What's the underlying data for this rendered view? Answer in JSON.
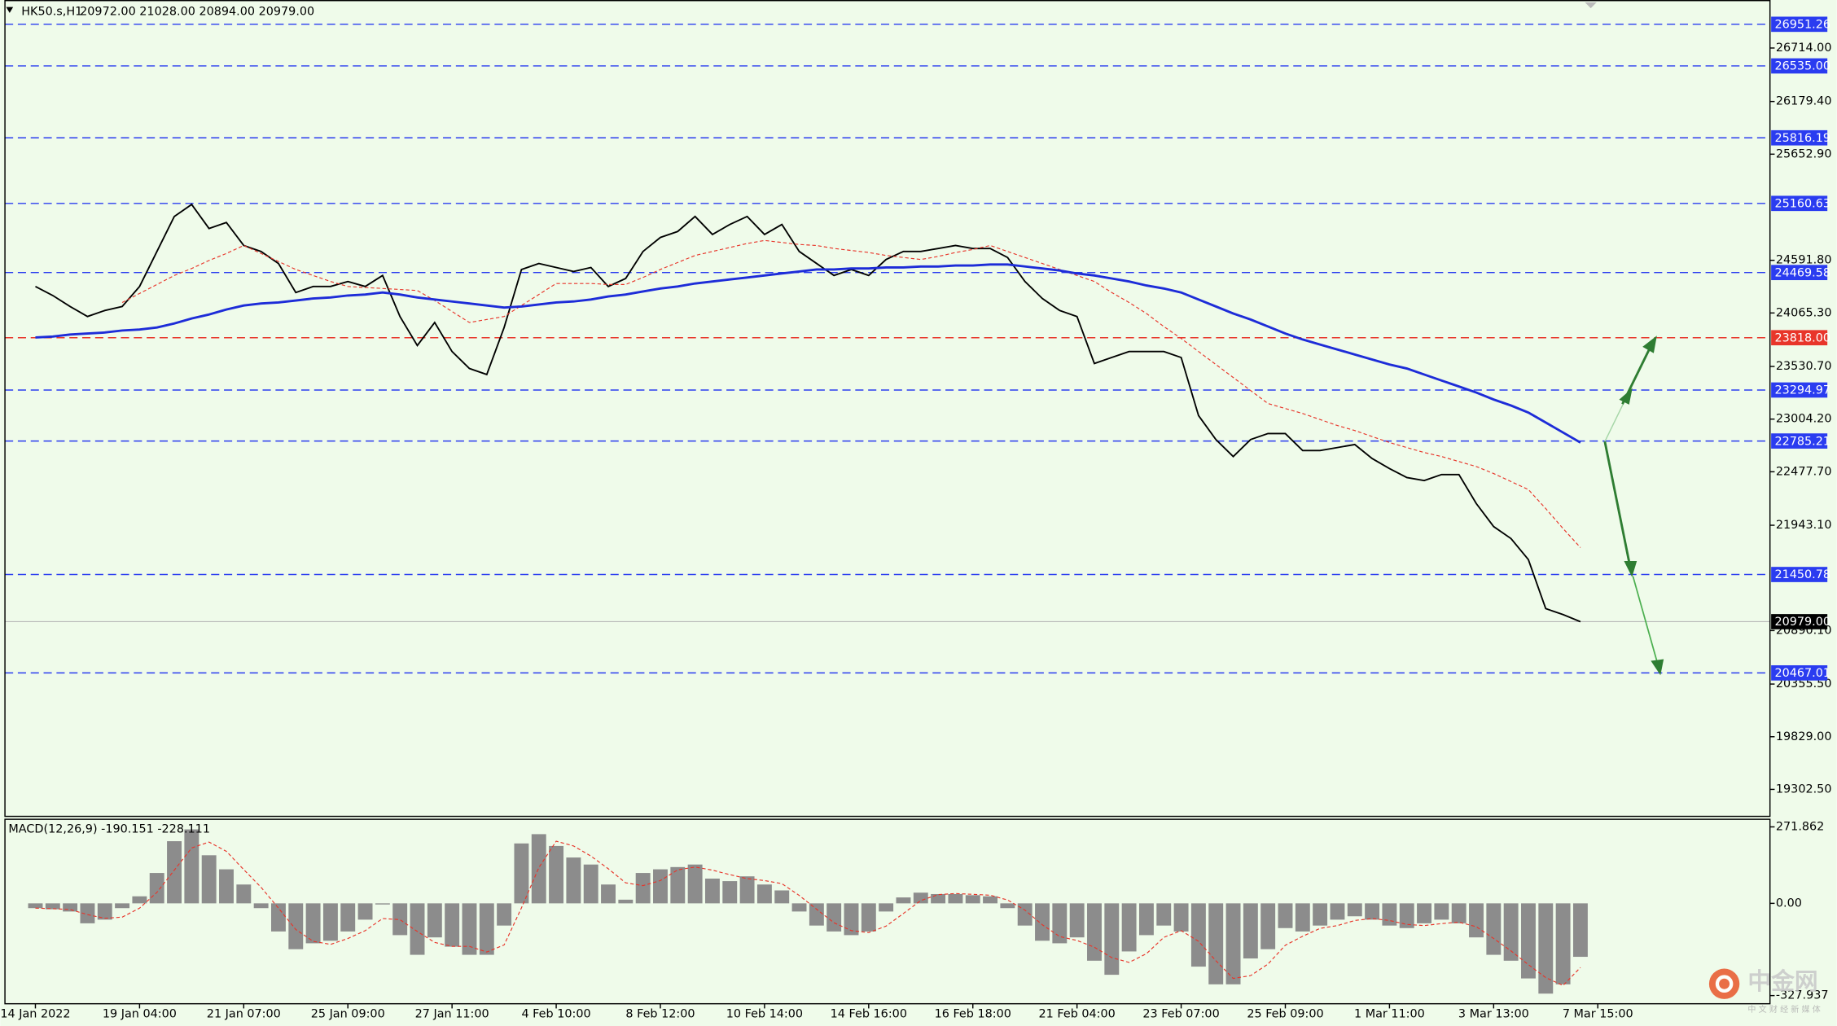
{
  "header": {
    "symbol": "HK50.s,H1",
    "ohlc": "20972.00 21028.00 20894.00 20979.00"
  },
  "watermark": {
    "name": "中金网",
    "tagline": "中 文 财 经 新 媒 体"
  },
  "chart_data": [
    {
      "type": "line",
      "background": "#effbea",
      "ylim": [
        19033,
        27194
      ],
      "yticks": [
        {
          "value": 26714,
          "label": "26714.00"
        },
        {
          "value": 26179.4,
          "label": "26179.40"
        },
        {
          "value": 25652.9,
          "label": "25652.90"
        },
        {
          "value": 24591.8,
          "label": "24591.80"
        },
        {
          "value": 24065.3,
          "label": "24065.30"
        },
        {
          "value": 23530.7,
          "label": "23530.70"
        },
        {
          "value": 23004.2,
          "label": "23004.20"
        },
        {
          "value": 22477.7,
          "label": "22477.70"
        },
        {
          "value": 21943.1,
          "label": "21943.10"
        },
        {
          "value": 20890.1,
          "label": "20890.10"
        },
        {
          "value": 20355.5,
          "label": "20355.50"
        },
        {
          "value": 19829,
          "label": "19829.00"
        },
        {
          "value": 19302.5,
          "label": "19302.50"
        }
      ],
      "levels": [
        {
          "value": 26951.26,
          "color": "#2a3cf0"
        },
        {
          "value": 26535,
          "label": "26535.00",
          "color": "#2a3cf0"
        },
        {
          "value": 25816.19,
          "color": "#2a3cf0"
        },
        {
          "value": 25160.63,
          "color": "#2a3cf0"
        },
        {
          "value": 24469.58,
          "color": "#2a3cf0"
        },
        {
          "value": 23818,
          "label": "23818.00",
          "color": "#e8352a"
        },
        {
          "value": 23294.97,
          "color": "#2a3cf0"
        },
        {
          "value": 22785.21,
          "color": "#2a3cf0"
        },
        {
          "value": 21450.78,
          "color": "#2a3cf0"
        },
        {
          "value": 20467.01,
          "color": "#2a3cf0"
        }
      ],
      "current_price": {
        "value": 20979,
        "label": "20979.00",
        "color": "#000000"
      },
      "categories": [
        "14 Jan 2022",
        null,
        null,
        null,
        null,
        null,
        "19 Jan 04:00",
        null,
        null,
        null,
        null,
        null,
        "21 Jan 07:00",
        null,
        null,
        null,
        null,
        null,
        "25 Jan 09:00",
        null,
        null,
        null,
        null,
        null,
        "27 Jan 11:00",
        null,
        null,
        null,
        null,
        null,
        "4 Feb 10:00",
        null,
        null,
        null,
        null,
        null,
        "8 Feb 12:00",
        null,
        null,
        null,
        null,
        null,
        "10 Feb 14:00",
        null,
        null,
        null,
        null,
        null,
        "14 Feb 16:00",
        null,
        null,
        null,
        null,
        null,
        "16 Feb 18:00",
        null,
        null,
        null,
        null,
        null,
        "21 Feb 04:00",
        null,
        null,
        null,
        null,
        null,
        "23 Feb 07:00",
        null,
        null,
        null,
        null,
        null,
        "25 Feb 09:00",
        null,
        null,
        null,
        null,
        null,
        "1 Mar 11:00",
        null,
        null,
        null,
        null,
        null,
        "3 Mar 13:00",
        null,
        null,
        null,
        null,
        null,
        "7 Mar 15:00"
      ],
      "series": [
        {
          "color": "#000000",
          "width": 1.3,
          "values": [
            24330,
            24240,
            24130,
            24030,
            24090,
            24130,
            24330,
            24680,
            25030,
            25150,
            24910,
            24970,
            24740,
            24680,
            24560,
            24270,
            24330,
            24330,
            24380,
            24330,
            24440,
            24030,
            23740,
            23970,
            23680,
            23510,
            23450,
            23920,
            24500,
            24560,
            24520,
            24480,
            24520,
            24330,
            24410,
            24680,
            24820,
            24880,
            25030,
            24850,
            24950,
            25030,
            24850,
            24950,
            24680,
            24560,
            24440,
            24500,
            24440,
            24600,
            24680,
            24680,
            24710,
            24740,
            24710,
            24710,
            24620,
            24380,
            24210,
            24090,
            24030,
            23560,
            23620,
            23680,
            23680,
            23680,
            23620,
            23040,
            22800,
            22630,
            22800,
            22860,
            22860,
            22690,
            22690,
            22720,
            22750,
            22610,
            22510,
            22420,
            22390,
            22450,
            22450,
            22160,
            21930,
            21810,
            21600,
            21110,
            21050,
            20979,
            null
          ]
        },
        {
          "color": "#e8352a",
          "width": 0.8,
          "dashed": true,
          "values": [
            null,
            null,
            null,
            null,
            null,
            24170,
            24260,
            24350,
            24440,
            24510,
            24590,
            24660,
            24740,
            24660,
            24580,
            24500,
            24440,
            24380,
            24330,
            24320,
            24310,
            24300,
            24290,
            24190,
            24080,
            23970,
            24000,
            24030,
            24140,
            24250,
            24360,
            24360,
            24360,
            24350,
            24350,
            24420,
            24500,
            24570,
            24640,
            24680,
            24720,
            24760,
            24790,
            24770,
            24750,
            24740,
            24710,
            24690,
            24670,
            24640,
            24620,
            24600,
            24630,
            24670,
            24700,
            24740,
            24680,
            24620,
            24560,
            24500,
            24440,
            24380,
            24270,
            24170,
            24060,
            23930,
            23810,
            23680,
            23550,
            23420,
            23290,
            23160,
            23110,
            23060,
            23000,
            22940,
            22890,
            22830,
            22770,
            22720,
            22670,
            22630,
            22580,
            22530,
            22460,
            22380,
            22300,
            22110,
            21910,
            21720,
            null
          ]
        },
        {
          "color": "#1d2cd8",
          "width": 2,
          "values": [
            23820,
            23830,
            23850,
            23860,
            23870,
            23890,
            23900,
            23920,
            23960,
            24010,
            24050,
            24100,
            24140,
            24160,
            24170,
            24190,
            24210,
            24220,
            24240,
            24250,
            24270,
            24250,
            24220,
            24200,
            24180,
            24160,
            24140,
            24120,
            24130,
            24150,
            24170,
            24180,
            24200,
            24230,
            24250,
            24280,
            24310,
            24330,
            24360,
            24380,
            24400,
            24420,
            24440,
            24460,
            24480,
            24500,
            24500,
            24510,
            24510,
            24520,
            24520,
            24530,
            24530,
            24540,
            24540,
            24550,
            24550,
            24530,
            24510,
            24490,
            24460,
            24440,
            24410,
            24380,
            24340,
            24310,
            24270,
            24200,
            24130,
            24060,
            24000,
            23930,
            23860,
            23800,
            23750,
            23700,
            23650,
            23600,
            23550,
            23510,
            23450,
            23390,
            23330,
            23270,
            23200,
            23140,
            23070,
            22970,
            22870,
            22770,
            null
          ]
        }
      ]
    },
    {
      "type": "bar",
      "title": "MACD(12,26,9) -190.151 -228.111",
      "background": "#effbea",
      "ylim": [
        -357,
        301
      ],
      "yticks": [
        271.862,
        {
          "value": 0,
          "label": "0.00"
        },
        -327.937
      ],
      "series": [
        {
          "type": "bar",
          "color": "#8c8c8c",
          "values": [
            -17,
            -21,
            -29,
            -71,
            -58,
            -17,
            25,
            108,
            221,
            263,
            171,
            121,
            67,
            -17,
            -100,
            -163,
            -142,
            -133,
            -100,
            -58,
            -4,
            -113,
            -183,
            -121,
            -154,
            -183,
            -183,
            -79,
            213,
            246,
            204,
            163,
            138,
            67,
            13,
            108,
            121,
            129,
            138,
            88,
            79,
            96,
            67,
            46,
            -29,
            -79,
            -100,
            -113,
            -100,
            -29,
            21,
            38,
            33,
            33,
            29,
            25,
            -17,
            -79,
            -133,
            -142,
            -121,
            -204,
            -254,
            -171,
            -113,
            -79,
            -100,
            -225,
            -288,
            -288,
            -196,
            -163,
            -88,
            -100,
            -79,
            -58,
            -46,
            -58,
            -79,
            -88,
            -71,
            -58,
            -71,
            -121,
            -183,
            -204,
            -267,
            -321,
            -288,
            -190.151,
            null
          ]
        },
        {
          "type": "line",
          "color": "#e8352a",
          "dashed": true,
          "width": 0.8,
          "values": [
            -17,
            -19,
            -22,
            -40,
            -53,
            -49,
            -17,
            39,
            118,
            197,
            218,
            185,
            120,
            57,
            -17,
            -93,
            -135,
            -146,
            -125,
            -97,
            -54,
            -58,
            -100,
            -139,
            -153,
            -153,
            -173,
            -148,
            -16,
            127,
            221,
            204,
            168,
            123,
            73,
            63,
            81,
            119,
            129,
            118,
            102,
            88,
            81,
            70,
            28,
            -21,
            -69,
            -97,
            -104,
            -81,
            -36,
            10,
            31,
            35,
            32,
            29,
            12,
            -24,
            -76,
            -118,
            -132,
            -156,
            -193,
            -210,
            -179,
            -121,
            -97,
            -135,
            -204,
            -267,
            -257,
            -216,
            -149,
            -117,
            -89,
            -79,
            -61,
            -54,
            -61,
            -75,
            -79,
            -72,
            -67,
            -83,
            -125,
            -169,
            -218,
            -264,
            -292,
            -228.111,
            null
          ]
        }
      ]
    }
  ]
}
